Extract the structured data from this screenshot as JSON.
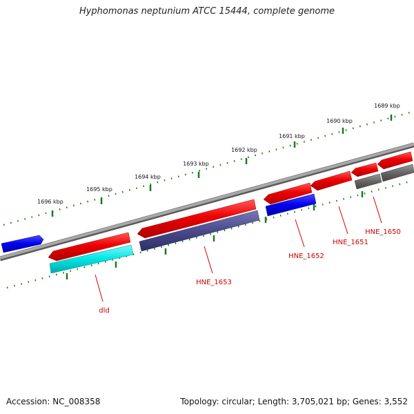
{
  "title": "Hyphomonas neptunium ATCC 15444, complete genome",
  "footer": {
    "accession": "Accession: NC_008358",
    "summary": "Topology: circular; Length: 3,705,021 bp; Genes: 3,552"
  },
  "ruler": {
    "labels": [
      "1689 kbp",
      "1690 kbp",
      "1691 kbp",
      "1692 kbp",
      "1693 kbp",
      "1694 kbp",
      "1695 kbp",
      "1696 kbp"
    ]
  },
  "genes": [
    {
      "label": "HNE_1650",
      "color": "#d40000"
    },
    {
      "label": "HNE_1651",
      "color": "#d40000"
    },
    {
      "label": "HNE_1652",
      "color": "#d40000"
    },
    {
      "label": "HNE_1653",
      "color": "#d40000"
    },
    {
      "label": "dld",
      "color": "#d40000"
    }
  ],
  "colors": {
    "backbone": "#8a8a8a",
    "tick": "#1a7a1a",
    "forward_feature": "#ee0000",
    "reverse_blue": "#0000ee",
    "reverse_cyan": "#00e5e5",
    "reverse_slate": "#4a4a8c",
    "reverse_gray": "#666666",
    "label_red": "#cc0000"
  }
}
